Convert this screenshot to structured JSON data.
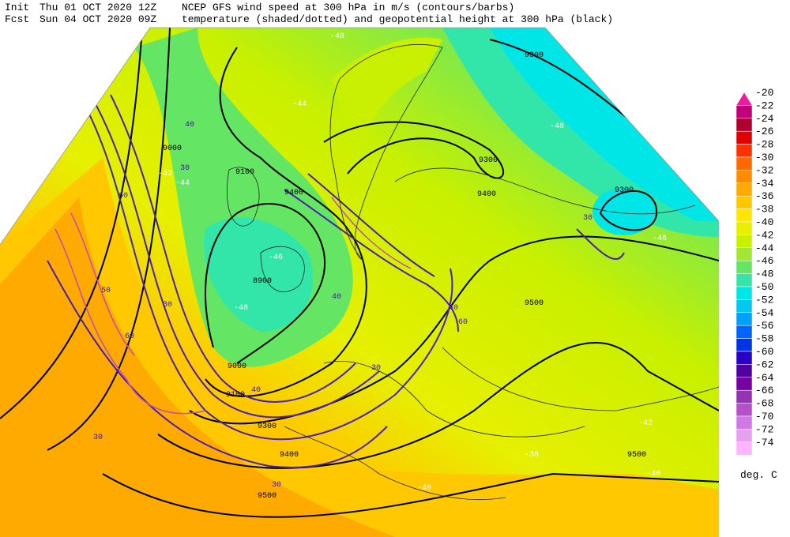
{
  "header": {
    "init_label": "Init",
    "init_time": "Thu 01 OCT 2020 12Z",
    "fcst_label": "Fcst",
    "fcst_time": "Sun 04 OCT 2020 09Z",
    "line1": "NCEP GFS wind speed at 300 hPa in m/s (contours/barbs)",
    "line2": "temperature (shaded/dotted) and geopotential height at 300 hPa (black)"
  },
  "colorbar": {
    "labels": [
      -20,
      -22,
      -24,
      -26,
      -28,
      -30,
      -32,
      -34,
      -36,
      -38,
      -40,
      -42,
      -44,
      -46,
      -48,
      -50,
      -52,
      -54,
      -56,
      -58,
      -60,
      -62,
      -64,
      -66,
      -68,
      -70,
      -72,
      -74
    ],
    "colors": [
      "#ee1aa0",
      "#c0007a",
      "#b0002e",
      "#e00000",
      "#ff3200",
      "#ff6a00",
      "#ff8c00",
      "#ffaa00",
      "#ffc800",
      "#ffe600",
      "#e6f000",
      "#c8f000",
      "#a0e632",
      "#64e664",
      "#32e6aa",
      "#00e6e6",
      "#00c8f0",
      "#00a0ff",
      "#0064ff",
      "#0032e6",
      "#2800c8",
      "#5000a0",
      "#7800a0",
      "#9632b4",
      "#b450c8",
      "#d278e6",
      "#e6a0f0",
      "#ffb4ff"
    ],
    "unit": "deg. C"
  },
  "map": {
    "labels": [
      "9300",
      "9000",
      "9100",
      "9300",
      "9400",
      "9300",
      "9400",
      "8900",
      "9000",
      "9100",
      "9300",
      "9400",
      "9500",
      "9500",
      "9500",
      "30",
      "40",
      "60",
      "50",
      "60",
      "40",
      "30",
      "30",
      "40",
      "60",
      "40",
      "30",
      "30",
      "30",
      "-48",
      "-44",
      "-48",
      "-46",
      "-42",
      "-44",
      "-46",
      "-48",
      "-42",
      "-40",
      "-38",
      "-40"
    ]
  }
}
